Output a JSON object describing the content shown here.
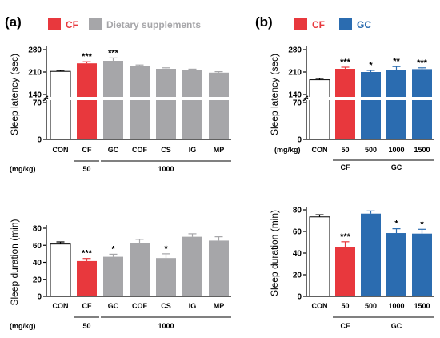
{
  "panels": [
    {
      "label": "(a)",
      "legend": [
        {
          "label": "CF",
          "color": "#e8383d"
        },
        {
          "label": "Dietary supplements",
          "color": "#a6a6a9"
        }
      ]
    },
    {
      "label": "(b)",
      "legend": [
        {
          "label": "CF",
          "color": "#e8383d"
        },
        {
          "label": "GC",
          "color": "#2b6cb0"
        }
      ]
    }
  ],
  "chart_data": [
    {
      "type": "bar",
      "panel": "(a)",
      "ylabel": "Sleep latency (sec)",
      "categories": [
        "CON",
        "CF",
        "GC",
        "COF",
        "CS",
        "IG",
        "MP"
      ],
      "values": [
        212,
        237,
        245,
        229,
        220,
        215,
        208
      ],
      "errors": [
        3,
        5,
        9,
        3,
        3,
        4,
        3
      ],
      "significance": [
        "",
        "***",
        "***",
        "",
        "",
        "",
        ""
      ],
      "bar_colors": [
        "#ffffff",
        "#e8383d",
        "#a6a6a9",
        "#a6a6a9",
        "#a6a6a9",
        "#a6a6a9",
        "#a6a6a9"
      ],
      "yticks": [
        "0",
        "70",
        "140",
        "210",
        "280"
      ],
      "axis_break": [
        70,
        140
      ],
      "ylim": [
        0,
        280
      ],
      "dose_unit": "(mg/kg)",
      "dose_groups": [
        {
          "label": "50",
          "from": 1,
          "to": 1
        },
        {
          "label": "1000",
          "from": 2,
          "to": 6
        }
      ]
    },
    {
      "type": "bar",
      "panel": "(a)",
      "ylabel": "Sleep duration (min)",
      "categories": [
        "CON",
        "CF",
        "GC",
        "COF",
        "CS",
        "IG",
        "MP"
      ],
      "values": [
        61.5,
        41.5,
        46.5,
        63,
        45,
        70,
        65.5
      ],
      "errors": [
        2.5,
        3,
        3,
        4,
        5,
        3.5,
        4.5
      ],
      "significance": [
        "",
        "***",
        "*",
        "",
        "*",
        "",
        ""
      ],
      "bar_colors": [
        "#ffffff",
        "#e8383d",
        "#a6a6a9",
        "#a6a6a9",
        "#a6a6a9",
        "#a6a6a9",
        "#a6a6a9"
      ],
      "yticks": [
        "0",
        "20",
        "40",
        "60",
        "80"
      ],
      "ylim": [
        0,
        80
      ],
      "dose_unit": "(mg/kg)",
      "dose_groups": [
        {
          "label": "50",
          "from": 1,
          "to": 1
        },
        {
          "label": "1000",
          "from": 2,
          "to": 6
        }
      ]
    },
    {
      "type": "bar",
      "panel": "(b)",
      "ylabel": "Sleep latency (sec)",
      "categories": [
        "CON",
        "50",
        "500",
        "1000",
        "1500"
      ],
      "values": [
        186,
        220,
        210,
        215,
        219
      ],
      "errors": [
        4,
        5,
        5,
        12,
        4
      ],
      "significance": [
        "",
        "***",
        "*",
        "**",
        "***"
      ],
      "bar_colors": [
        "#ffffff",
        "#e8383d",
        "#2b6cb0",
        "#2b6cb0",
        "#2b6cb0"
      ],
      "yticks": [
        "0",
        "70",
        "140",
        "210",
        "280"
      ],
      "axis_break": [
        70,
        140
      ],
      "ylim": [
        0,
        280
      ],
      "dose_unit": "(mg/kg)",
      "dose_groups": [
        {
          "label": "CF",
          "from": 1,
          "to": 1
        },
        {
          "label": "GC",
          "from": 2,
          "to": 4
        }
      ]
    },
    {
      "type": "bar",
      "panel": "(b)",
      "ylabel": "Sleep duration (min)",
      "categories": [
        "CON",
        "50",
        "500",
        "1000",
        "1500"
      ],
      "values": [
        73.5,
        45.5,
        76.5,
        58.5,
        58
      ],
      "errors": [
        2,
        5,
        2.5,
        4,
        4
      ],
      "significance": [
        "",
        "***",
        "",
        "*",
        "*"
      ],
      "bar_colors": [
        "#ffffff",
        "#e8383d",
        "#2b6cb0",
        "#2b6cb0",
        "#2b6cb0"
      ],
      "yticks": [
        "0",
        "20",
        "40",
        "60",
        "80"
      ],
      "ylim": [
        0,
        80
      ],
      "dose_unit": "",
      "dose_groups": [
        {
          "label": "CF",
          "from": 1,
          "to": 1
        },
        {
          "label": "GC",
          "from": 2,
          "to": 4
        }
      ]
    }
  ]
}
